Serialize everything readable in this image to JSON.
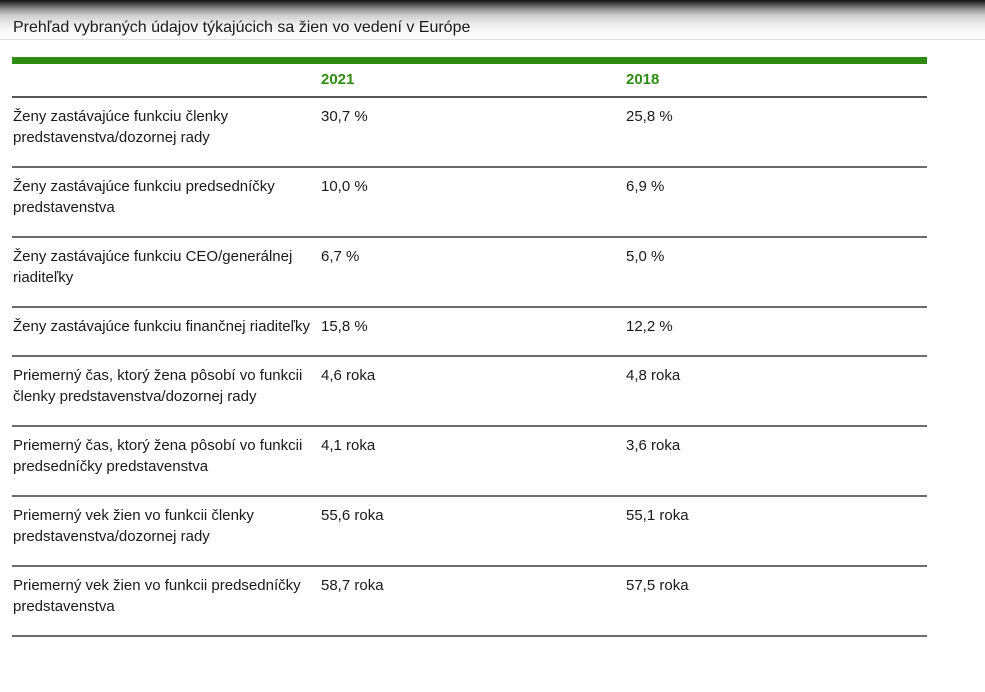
{
  "header": {
    "title": "Prehľad vybraných údajov týkajúcich sa žien vo vedení v Európe"
  },
  "table": {
    "columns": [
      {
        "label": ""
      },
      {
        "label": "2021"
      },
      {
        "label": "2018"
      }
    ],
    "rows": [
      {
        "label": "Ženy zastávajúce funkciu členky predstavenstva/dozornej rady",
        "v2021": "30,7 %",
        "v2018": "25,8 %"
      },
      {
        "label": "Ženy zastávajúce funkciu predsedníčky predstavenstva",
        "v2021": "10,0 %",
        "v2018": "6,9 %"
      },
      {
        "label": "Ženy zastávajúce funkciu CEO/generálnej riaditeľky",
        "v2021": "6,7 %",
        "v2018": "5,0 %"
      },
      {
        "label": "Ženy zastávajúce funkciu finančnej riaditeľky",
        "v2021": "15,8 %",
        "v2018": "12,2 %"
      },
      {
        "label": "Priemerný čas, ktorý žena pôsobí vo funkcii členky predstavenstva/dozornej rady",
        "v2021": "4,6 roka",
        "v2018": "4,8 roka"
      },
      {
        "label": "Priemerný čas, ktorý žena pôsobí vo funkcii predsedníčky predstavenstva",
        "v2021": "4,1 roka",
        "v2018": "3,6 roka"
      },
      {
        "label": "Priemerný vek žien vo funkcii členky predstavenstva/dozornej rady",
        "v2021": "55,6 roka",
        "v2018": "55,1 roka"
      },
      {
        "label": "Priemerný vek žien vo funkcii predsedníčky predstavenstva",
        "v2021": "58,7 roka",
        "v2018": "57,5 roka"
      }
    ]
  },
  "colors": {
    "accent_green": "#2e8c14",
    "separator_dark": "#6b6b6b",
    "separator_light": "#cfcfcf",
    "title_text": "#1b1b1b"
  }
}
